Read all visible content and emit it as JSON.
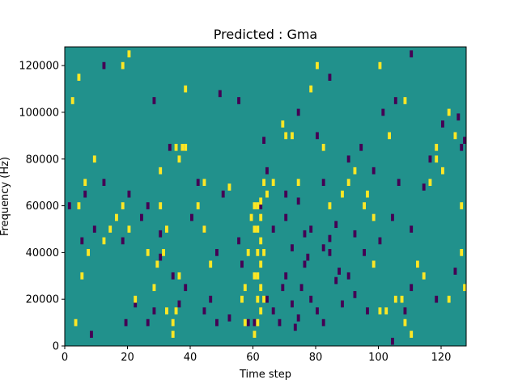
{
  "chart_data": {
    "type": "heatmap",
    "title": "Predicted : Gma",
    "xlabel": "Time step",
    "ylabel": "Frequency (Hz)",
    "xlim": [
      0,
      128
    ],
    "ylim": [
      0,
      128000
    ],
    "x_ticks": [
      0,
      20,
      40,
      60,
      80,
      100,
      120
    ],
    "y_ticks": [
      0,
      20000,
      40000,
      60000,
      80000,
      100000,
      120000
    ],
    "rows": 128,
    "cols": 128,
    "grid": false,
    "colors": {
      "background": "#21918c",
      "low": "#440154",
      "high": "#fde725"
    },
    "low_cells": [
      [
        8,
        5000
      ],
      [
        19,
        10000
      ],
      [
        26,
        10000
      ],
      [
        28,
        15000
      ],
      [
        36,
        18000
      ],
      [
        38,
        25000
      ],
      [
        44,
        15000
      ],
      [
        46,
        20000
      ],
      [
        48,
        10000
      ],
      [
        52,
        12000
      ],
      [
        58,
        10000
      ],
      [
        64,
        20000
      ],
      [
        66,
        15000
      ],
      [
        68,
        10000
      ],
      [
        70,
        30000
      ],
      [
        72,
        18000
      ],
      [
        73,
        8000
      ],
      [
        74,
        12000
      ],
      [
        75,
        25000
      ],
      [
        76,
        35000
      ],
      [
        78,
        20000
      ],
      [
        80,
        15000
      ],
      [
        82,
        10000
      ],
      [
        84,
        40000
      ],
      [
        86,
        28000
      ],
      [
        88,
        18000
      ],
      [
        90,
        30000
      ],
      [
        92,
        22000
      ],
      [
        95,
        40000
      ],
      [
        104,
        2000
      ],
      [
        108,
        15000
      ],
      [
        110,
        25000
      ],
      [
        112,
        35000
      ],
      [
        118,
        20000
      ],
      [
        124,
        32000
      ],
      [
        9,
        50000
      ],
      [
        18,
        45000
      ],
      [
        24,
        55000
      ],
      [
        30,
        48000
      ],
      [
        34,
        30000
      ],
      [
        40,
        55000
      ],
      [
        48,
        40000
      ],
      [
        55,
        45000
      ],
      [
        62,
        60000
      ],
      [
        66,
        50000
      ],
      [
        70,
        55000
      ],
      [
        72,
        42000
      ],
      [
        76,
        48000
      ],
      [
        78,
        50000
      ],
      [
        82,
        42000
      ],
      [
        84,
        46000
      ],
      [
        86,
        52000
      ],
      [
        92,
        48000
      ],
      [
        100,
        45000
      ],
      [
        104,
        55000
      ],
      [
        110,
        50000
      ],
      [
        12,
        70000
      ],
      [
        20,
        65000
      ],
      [
        26,
        60000
      ],
      [
        33,
        85000
      ],
      [
        42,
        70000
      ],
      [
        50,
        65000
      ],
      [
        64,
        75000
      ],
      [
        70,
        65000
      ],
      [
        74,
        62000
      ],
      [
        82,
        70000
      ],
      [
        90,
        80000
      ],
      [
        98,
        75000
      ],
      [
        106,
        70000
      ],
      [
        114,
        68000
      ],
      [
        126,
        85000
      ],
      [
        127,
        88000
      ],
      [
        5,
        45000
      ],
      [
        12,
        120000
      ],
      [
        28,
        105000
      ],
      [
        37,
        85000
      ],
      [
        49,
        108000
      ],
      [
        55,
        105000
      ],
      [
        63,
        88000
      ],
      [
        74,
        100000
      ],
      [
        80,
        90000
      ],
      [
        84,
        115000
      ],
      [
        94,
        85000
      ],
      [
        101,
        100000
      ],
      [
        105,
        105000
      ],
      [
        110,
        125000
      ],
      [
        116,
        80000
      ],
      [
        120,
        95000
      ],
      [
        125,
        98000
      ],
      [
        1,
        60000
      ],
      [
        6,
        65000
      ],
      [
        22,
        18000
      ],
      [
        30,
        38000
      ],
      [
        44,
        50000
      ],
      [
        56,
        35000
      ],
      [
        60,
        10000
      ],
      [
        69,
        25000
      ],
      [
        77,
        38000
      ],
      [
        87,
        32000
      ],
      [
        96,
        15000
      ]
    ],
    "high_cells": [
      [
        60,
        5000
      ],
      [
        61,
        10000
      ],
      [
        62,
        15000
      ],
      [
        61,
        20000
      ],
      [
        62,
        25000
      ],
      [
        61,
        30000
      ],
      [
        62,
        35000
      ],
      [
        61,
        40000
      ],
      [
        62,
        45000
      ],
      [
        61,
        50000
      ],
      [
        62,
        55000
      ],
      [
        61,
        60000
      ],
      [
        62,
        62000
      ],
      [
        63,
        20000
      ],
      [
        63,
        40000
      ],
      [
        60,
        30000
      ],
      [
        60,
        50000
      ],
      [
        60,
        60000
      ],
      [
        64,
        65000
      ],
      [
        63,
        70000
      ],
      [
        58,
        40000
      ],
      [
        59,
        55000
      ],
      [
        57,
        25000
      ],
      [
        56,
        20000
      ],
      [
        57,
        10000
      ],
      [
        38,
        85000
      ],
      [
        37,
        85000
      ],
      [
        36,
        80000
      ],
      [
        35,
        85000
      ],
      [
        34,
        10000
      ],
      [
        35,
        15000
      ],
      [
        34,
        5000
      ],
      [
        36,
        30000
      ],
      [
        31,
        40000
      ],
      [
        30,
        60000
      ],
      [
        32,
        50000
      ],
      [
        29,
        35000
      ],
      [
        28,
        25000
      ],
      [
        26,
        40000
      ],
      [
        22,
        20000
      ],
      [
        20,
        50000
      ],
      [
        18,
        60000
      ],
      [
        16,
        55000
      ],
      [
        14,
        50000
      ],
      [
        12,
        45000
      ],
      [
        9,
        80000
      ],
      [
        7,
        40000
      ],
      [
        6,
        70000
      ],
      [
        4,
        60000
      ],
      [
        3,
        10000
      ],
      [
        5,
        30000
      ],
      [
        2,
        105000
      ],
      [
        4,
        115000
      ],
      [
        18,
        120000
      ],
      [
        20,
        125000
      ],
      [
        38,
        110000
      ],
      [
        44,
        70000
      ],
      [
        52,
        68000
      ],
      [
        66,
        70000
      ],
      [
        69,
        95000
      ],
      [
        70,
        90000
      ],
      [
        72,
        90000
      ],
      [
        74,
        70000
      ],
      [
        78,
        110000
      ],
      [
        80,
        120000
      ],
      [
        84,
        60000
      ],
      [
        88,
        65000
      ],
      [
        92,
        75000
      ],
      [
        95,
        60000
      ],
      [
        98,
        35000
      ],
      [
        100,
        15000
      ],
      [
        102,
        15000
      ],
      [
        105,
        20000
      ],
      [
        107,
        20000
      ],
      [
        108,
        10000
      ],
      [
        110,
        5000
      ],
      [
        114,
        30000
      ],
      [
        116,
        70000
      ],
      [
        118,
        85000
      ],
      [
        122,
        100000
      ],
      [
        124,
        90000
      ],
      [
        126,
        60000
      ],
      [
        127,
        25000
      ],
      [
        90,
        70000
      ],
      [
        96,
        65000
      ],
      [
        98,
        55000
      ],
      [
        100,
        120000
      ],
      [
        103,
        90000
      ],
      [
        108,
        105000
      ],
      [
        112,
        35000
      ],
      [
        118,
        80000
      ],
      [
        120,
        75000
      ],
      [
        122,
        20000
      ],
      [
        126,
        40000
      ],
      [
        82,
        85000
      ],
      [
        44,
        50000
      ],
      [
        32,
        15000
      ],
      [
        30,
        75000
      ],
      [
        46,
        35000
      ],
      [
        42,
        60000
      ]
    ]
  }
}
